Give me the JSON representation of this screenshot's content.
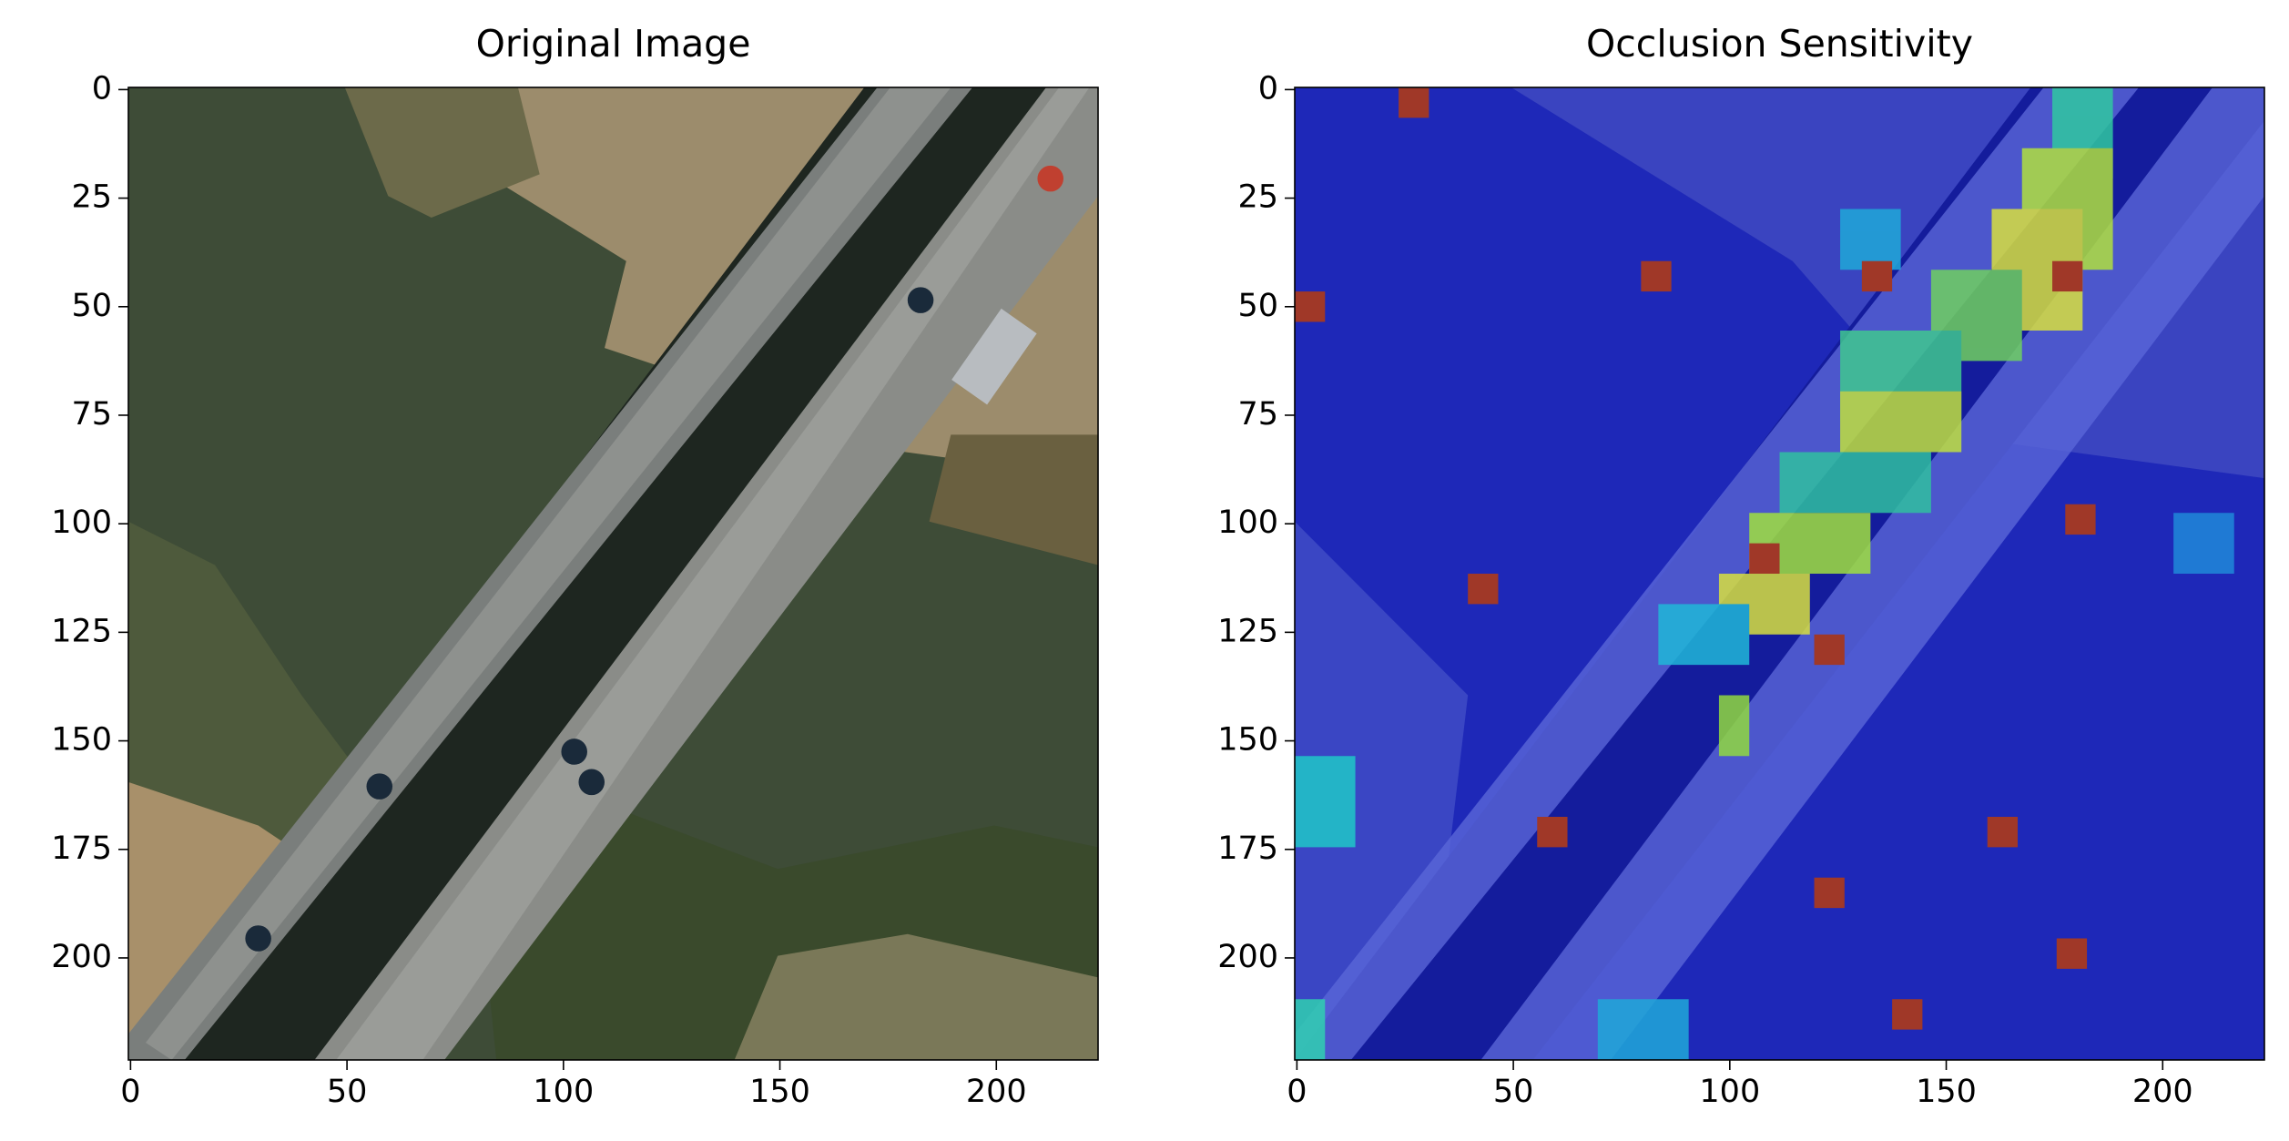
{
  "chart_data": [
    {
      "type": "image",
      "title": "Original Image",
      "xlim": [
        -0.5,
        223.5
      ],
      "ylim": [
        223.5,
        -0.5
      ],
      "xticks": [
        0,
        50,
        100,
        150,
        200
      ],
      "yticks": [
        0,
        25,
        50,
        75,
        100,
        125,
        150,
        175,
        200
      ]
    },
    {
      "type": "image",
      "title": "Occlusion Sensitivity",
      "xlim": [
        -0.5,
        223.5
      ],
      "ylim": [
        223.5,
        -0.5
      ],
      "xticks": [
        0,
        50,
        100,
        150,
        200
      ],
      "yticks": [
        0,
        25,
        50,
        75,
        100,
        125,
        150,
        175,
        200
      ]
    }
  ]
}
